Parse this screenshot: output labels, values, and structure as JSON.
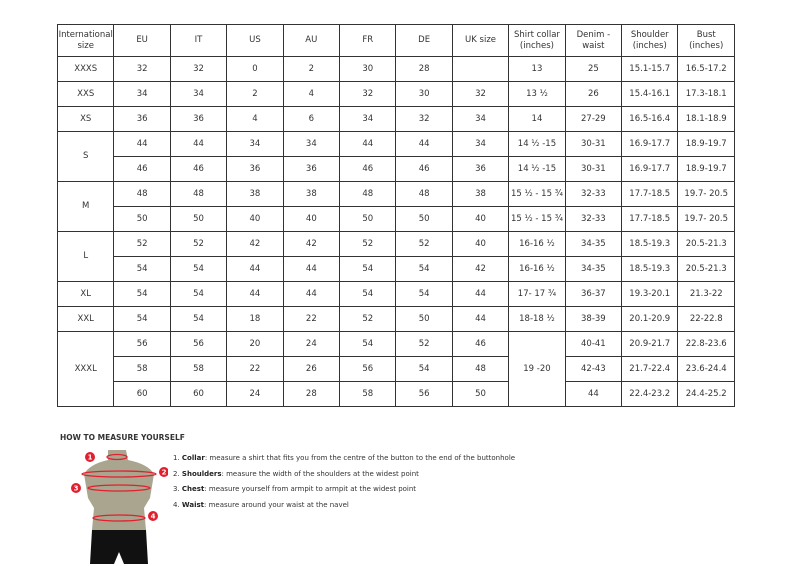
{
  "table": {
    "headers": [
      "International size",
      "EU",
      "IT",
      "US",
      "AU",
      "FR",
      "DE",
      "UK size",
      "Shirt collar (inches)",
      "Denim - waist",
      "Shoulder (inches)",
      "Bust (inches)"
    ],
    "rows": [
      {
        "size": "XXXS",
        "span": 1,
        "cells": [
          "32",
          "32",
          "0",
          "2",
          "30",
          "28",
          ""
        ],
        "collar": "13",
        "collar_span": 1,
        "rest": [
          "25",
          "15.1-15.7",
          "16.5-17.2"
        ]
      },
      {
        "size": "XXS",
        "span": 1,
        "cells": [
          "34",
          "34",
          "2",
          "4",
          "32",
          "30",
          "32"
        ],
        "collar": "13 ½",
        "collar_span": 1,
        "rest": [
          "26",
          "15.4-16.1",
          "17.3-18.1"
        ]
      },
      {
        "size": "XS",
        "span": 1,
        "cells": [
          "36",
          "36",
          "4",
          "6",
          "34",
          "32",
          "34"
        ],
        "collar": "14",
        "collar_span": 1,
        "rest": [
          "27-29",
          "16.5-16.4",
          "18.1-18.9"
        ]
      },
      {
        "size": "S",
        "span": 2,
        "cells": [
          "44",
          "44",
          "34",
          "34",
          "44",
          "44",
          "34"
        ],
        "collar": "14 ½ -15",
        "collar_span": 1,
        "rest": [
          "30-31",
          "16.9-17.7",
          "18.9-19.7"
        ]
      },
      {
        "cells": [
          "46",
          "46",
          "36",
          "36",
          "46",
          "46",
          "36"
        ],
        "collar": "14 ½ -15",
        "collar_span": 1,
        "rest": [
          "30-31",
          "16.9-17.7",
          "18.9-19.7"
        ]
      },
      {
        "size": "M",
        "span": 2,
        "cells": [
          "48",
          "48",
          "38",
          "38",
          "48",
          "48",
          "38"
        ],
        "collar": "15 ½ - 15 ¾",
        "collar_span": 1,
        "rest": [
          "32-33",
          "17.7-18.5",
          "19.7- 20.5"
        ]
      },
      {
        "cells": [
          "50",
          "50",
          "40",
          "40",
          "50",
          "50",
          "40"
        ],
        "collar": "15 ½ - 15 ¾",
        "collar_span": 1,
        "rest": [
          "32-33",
          "17.7-18.5",
          "19.7- 20.5"
        ]
      },
      {
        "size": "L",
        "span": 2,
        "cells": [
          "52",
          "52",
          "42",
          "42",
          "52",
          "52",
          "40"
        ],
        "collar": "16-16 ½",
        "collar_span": 1,
        "rest": [
          "34-35",
          "18.5-19.3",
          "20.5-21.3"
        ]
      },
      {
        "cells": [
          "54",
          "54",
          "44",
          "44",
          "54",
          "54",
          "42"
        ],
        "collar": "16-16 ½",
        "collar_span": 1,
        "rest": [
          "34-35",
          "18.5-19.3",
          "20.5-21.3"
        ]
      },
      {
        "size": "XL",
        "span": 1,
        "cells": [
          "54",
          "54",
          "44",
          "44",
          "54",
          "54",
          "44"
        ],
        "collar": "17- 17 ¾",
        "collar_span": 1,
        "rest": [
          "36-37",
          "19.3-20.1",
          "21.3-22"
        ]
      },
      {
        "size": "XXL",
        "span": 1,
        "cells": [
          "54",
          "54",
          "18",
          "22",
          "52",
          "50",
          "44"
        ],
        "collar": "18-18 ½",
        "collar_span": 1,
        "rest": [
          "38-39",
          "20.1-20.9",
          "22-22.8"
        ]
      },
      {
        "size": "XXXL",
        "span": 3,
        "cells": [
          "56",
          "56",
          "20",
          "24",
          "54",
          "52",
          "46"
        ],
        "collar": "19 -20",
        "collar_span": 3,
        "rest": [
          "40-41",
          "20.9-21.7",
          "22.8-23.6"
        ]
      },
      {
        "cells": [
          "58",
          "58",
          "22",
          "26",
          "56",
          "54",
          "48"
        ],
        "rest": [
          "42-43",
          "21.7-22.4",
          "23.6-24.4"
        ]
      },
      {
        "cells": [
          "60",
          "60",
          "24",
          "28",
          "58",
          "56",
          "50"
        ],
        "rest": [
          "44",
          "22.4-23.2",
          "24.4-25.2"
        ]
      }
    ]
  },
  "measure": {
    "title": "HOW TO MEASURE YOURSELF",
    "steps": [
      {
        "num": "1.",
        "term": "Collar",
        "text": ": measure a shirt that fits you from the centre of the button to the end of the buttonhole"
      },
      {
        "num": "2.",
        "term": "Shoulders",
        "text": ": measure the width of the shoulders at the widest point"
      },
      {
        "num": "3.",
        "term": "Chest",
        "text": ": measure yourself from armpit to armpit at the widest point"
      },
      {
        "num": "4.",
        "term": "Waist",
        "text": ": measure around your waist at the navel"
      }
    ],
    "markers": [
      "1",
      "2",
      "3",
      "4"
    ],
    "colors": {
      "marker": "#e0202e",
      "torso": "#a9a58f",
      "shorts": "#111111"
    }
  }
}
